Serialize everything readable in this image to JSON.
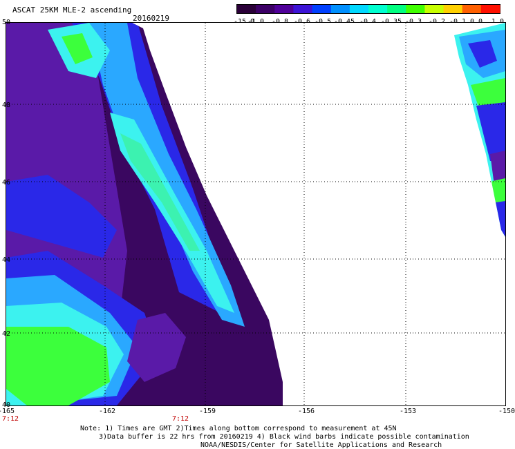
{
  "header": {
    "title": "ASCAT 25KM MLE-2 ascending",
    "date": "20160219"
  },
  "colorbar": {
    "tick_labels": [
      "-15.0",
      "-1.0",
      "-0.8",
      "-0.6",
      "-0.5",
      "-0.45",
      "-0.4",
      "-0.35",
      "-0.3",
      "-0.2",
      "-0.1",
      "0.0",
      "1.0"
    ],
    "colors": [
      "#2a0038",
      "#3c0066",
      "#4f0099",
      "#3c14d6",
      "#0040ff",
      "#0090ff",
      "#00d8ff",
      "#00ffd0",
      "#00ff80",
      "#40ff00",
      "#c8ff00",
      "#ffd000",
      "#ff6000",
      "#ff1000"
    ]
  },
  "map": {
    "x_ticks": [
      "-165",
      "-162",
      "-159",
      "-156",
      "-153",
      "-150"
    ],
    "y_ticks": [
      "50",
      "48",
      "46",
      "44",
      "42",
      "40"
    ],
    "lon_range": [
      -165,
      -150
    ],
    "lat_range": [
      40,
      50
    ],
    "grid": true,
    "pass_times": [
      "7:12",
      "7:12"
    ],
    "field_colors": {
      "deep": "#3a0760",
      "violet": "#5a1aa8",
      "blue": "#2a28e8",
      "lightblue": "#2aa8ff",
      "cyan": "#3cf2ef",
      "mint": "#3cf2b0",
      "green": "#3cff3c"
    }
  },
  "footer": {
    "note_line1": "Note: 1) Times are GMT 2)Times along bottom correspond to measurement at 45N",
    "note_line2": "3)Data buffer is 22 hrs from 20160219 4) Black wind barbs indicate possible contamination",
    "note_line3": "NOAA/NESDIS/Center for Satellite Applications and Research"
  }
}
